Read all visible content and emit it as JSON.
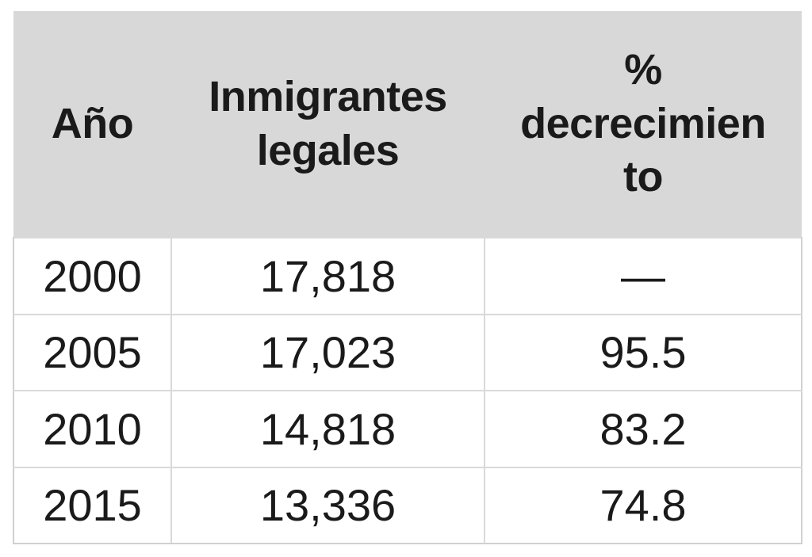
{
  "table": {
    "headers": {
      "year": "Año",
      "immigrants": "Inmigrantes\nlegales",
      "percent": "%\ndecrecimien\nto"
    },
    "rows": [
      {
        "year": "2000",
        "immigrants": "17,818",
        "percent": "—"
      },
      {
        "year": "2005",
        "immigrants": "17,023",
        "percent": "95.5"
      },
      {
        "year": "2010",
        "immigrants": "14,818",
        "percent": "83.2"
      },
      {
        "year": "2015",
        "immigrants": "13,336",
        "percent": "74.8"
      }
    ]
  }
}
